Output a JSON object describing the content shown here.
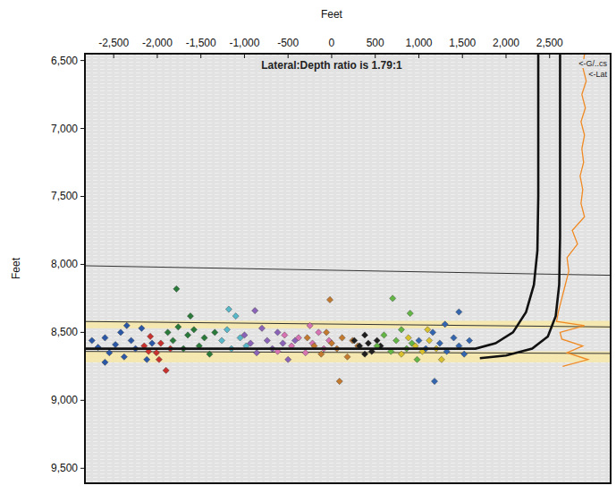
{
  "chart_data": {
    "type": "scatter",
    "title": "Lateral:Depth ratio is 1.79:1",
    "x_label": "Feet",
    "y_label": "Feet",
    "annotations": [
      "<-G/..cs",
      "<-Lat"
    ],
    "xlim": [
      -2830,
      3200
    ],
    "ylim": [
      9610,
      6450
    ],
    "xticks": [
      {
        "value": -2500,
        "label": "-2,500"
      },
      {
        "value": -2000,
        "label": "-2,000"
      },
      {
        "value": -1500,
        "label": "-1,500"
      },
      {
        "value": -1000,
        "label": "-1,000"
      },
      -500,
      0,
      500,
      {
        "value": 1000,
        "label": "1,000"
      },
      {
        "value": 1500,
        "label": "1,500"
      },
      {
        "value": 2000,
        "label": "2,000"
      },
      {
        "value": 2500,
        "label": "2,500"
      }
    ],
    "yticks": [
      {
        "value": 6500,
        "label": "6,500"
      },
      {
        "value": 7000,
        "label": "7,000"
      },
      {
        "value": 7500,
        "label": "7,500"
      },
      {
        "value": 8000,
        "label": "8,000"
      },
      {
        "value": 8500,
        "label": "8,500"
      },
      {
        "value": 9000,
        "label": "9,000"
      },
      {
        "value": 9500,
        "label": "9,500"
      }
    ],
    "bands": [
      {
        "from": 8415,
        "to": 8470,
        "color": "#f7e7a6"
      },
      {
        "from": 8640,
        "to": 8720,
        "color": "#f7e7a6"
      }
    ],
    "series": [
      {
        "type": "line",
        "color": "#333333",
        "line_style": "solid",
        "x": [
          -2830,
          3200
        ],
        "values": [
          8010,
          8080
        ]
      },
      {
        "type": "line",
        "color": "#333333",
        "line_style": "solid",
        "x": [
          -2830,
          3200
        ],
        "values": [
          8420,
          8460
        ]
      },
      {
        "type": "line",
        "color": "#333333",
        "line_style": "solid",
        "x": [
          -2830,
          3200
        ],
        "values": [
          8640,
          8655
        ]
      },
      {
        "type": "scatter",
        "marker": "diamond",
        "color": "#2b58a6",
        "x": [
          -2750,
          -2680,
          -2600,
          -2550,
          -2480,
          -2420,
          -2380,
          -2300,
          -2250,
          -2180,
          -2120,
          -2060,
          -2600,
          -2350
        ],
        "values": [
          8560,
          8610,
          8540,
          8650,
          8590,
          8500,
          8680,
          8560,
          8620,
          8470,
          8700,
          8580,
          8720,
          8450
        ]
      },
      {
        "type": "scatter",
        "marker": "diamond",
        "color": "#c8312d",
        "x": [
          -2150,
          -2080,
          -2010,
          -1960,
          -1900,
          -1850,
          -1980,
          -2100
        ],
        "values": [
          8600,
          8530,
          8650,
          8580,
          8780,
          8620,
          8700,
          8640
        ]
      },
      {
        "type": "scatter",
        "marker": "diamond",
        "color": "#2a7a3a",
        "x": [
          -1880,
          -1820,
          -1760,
          -1700,
          -1650,
          -1580,
          -1520,
          -1460,
          -1400,
          -1340,
          -1780,
          -1620
        ],
        "values": [
          8500,
          8560,
          8460,
          8620,
          8520,
          8480,
          8600,
          8540,
          8660,
          8500,
          8180,
          8380
        ]
      },
      {
        "type": "scatter",
        "marker": "diamond",
        "color": "#58b8c9",
        "x": [
          -1260,
          -1200,
          -1150,
          -1100,
          -1050,
          -980,
          -1180
        ],
        "values": [
          8560,
          8480,
          8620,
          8380,
          8540,
          8600,
          8330
        ]
      },
      {
        "type": "scatter",
        "marker": "diamond",
        "color": "#8a63b8",
        "x": [
          -1000,
          -930,
          -860,
          -800,
          -740,
          -680,
          -620,
          -560,
          -500,
          -880,
          -420
        ],
        "values": [
          8520,
          8580,
          8650,
          8470,
          8560,
          8620,
          8500,
          8580,
          8700,
          8340,
          8560
        ]
      },
      {
        "type": "scatter",
        "marker": "diamond",
        "color": "#d873b3",
        "x": [
          -620,
          -540,
          -460,
          -380,
          -300,
          -220,
          -150,
          -90,
          -30,
          -250
        ],
        "values": [
          8640,
          8520,
          8600,
          8540,
          8650,
          8580,
          8500,
          8620,
          8560,
          8450
        ]
      },
      {
        "type": "scatter",
        "marker": "diamond",
        "color": "#c47a2e",
        "x": [
          -280,
          -200,
          -120,
          -60,
          0,
          60,
          120,
          180,
          240,
          -20,
          90,
          300
        ],
        "values": [
          8540,
          8600,
          8660,
          8500,
          8580,
          8620,
          8540,
          8680,
          8560,
          8260,
          8860,
          8600
        ]
      },
      {
        "type": "scatter",
        "marker": "diamond",
        "color": "#1e1e1e",
        "x": [
          260,
          320,
          380,
          420,
          460,
          520,
          560,
          380
        ],
        "values": [
          8560,
          8600,
          8520,
          8580,
          8640,
          8560,
          8600,
          8660
        ]
      },
      {
        "type": "scatter",
        "marker": "diamond",
        "color": "#63b646",
        "x": [
          520,
          600,
          680,
          740,
          800,
          860,
          920,
          980,
          700,
          900
        ],
        "values": [
          8600,
          8520,
          8640,
          8560,
          8480,
          8620,
          8580,
          8700,
          8250,
          8360
        ]
      },
      {
        "type": "scatter",
        "marker": "diamond",
        "color": "#d9c12e",
        "x": [
          800,
          880,
          960,
          1040,
          1120,
          1200,
          1260,
          1100
        ],
        "values": [
          8660,
          8540,
          8600,
          8640,
          8560,
          8620,
          8700,
          8480
        ]
      },
      {
        "type": "scatter",
        "marker": "diamond",
        "color": "#3466b0",
        "x": [
          1000,
          1080,
          1160,
          1240,
          1320,
          1400,
          1460,
          1520,
          1580,
          1300,
          1180,
          1460
        ],
        "values": [
          8560,
          8620,
          8500,
          8580,
          8640,
          8540,
          8600,
          8660,
          8560,
          8440,
          8860,
          8350
        ]
      },
      {
        "type": "line",
        "color": "#f08a24",
        "line_style": "solid",
        "x": [
          2900,
          2880,
          2920,
          2870,
          2910,
          2860,
          2900,
          2870,
          2890,
          2850,
          2880,
          2860,
          2900,
          2760,
          2820,
          2700,
          2720,
          2680,
          2640,
          2600,
          2580,
          2900,
          2620,
          2640,
          2880,
          2700,
          2940,
          2650
        ],
        "values": [
          6450,
          6550,
          6650,
          6750,
          6850,
          6950,
          7050,
          7150,
          7250,
          7350,
          7450,
          7550,
          7650,
          7750,
          7850,
          7950,
          8050,
          8150,
          8250,
          8350,
          8420,
          8450,
          8500,
          8550,
          8600,
          8650,
          8700,
          8750
        ]
      },
      {
        "type": "line",
        "color": "#111111",
        "line_style": "solid",
        "x": [
          2370,
          2370,
          2360,
          2320,
          2230,
          2080,
          1880,
          1650,
          -2830
        ],
        "values": [
          6450,
          7500,
          7900,
          8150,
          8350,
          8500,
          8580,
          8620,
          8620
        ]
      },
      {
        "type": "line",
        "color": "#111111",
        "line_style": "solid",
        "x": [
          2620,
          2620,
          2610,
          2570,
          2480,
          2300,
          2000,
          1700
        ],
        "values": [
          6450,
          7800,
          8150,
          8380,
          8530,
          8620,
          8670,
          8690
        ]
      }
    ]
  }
}
